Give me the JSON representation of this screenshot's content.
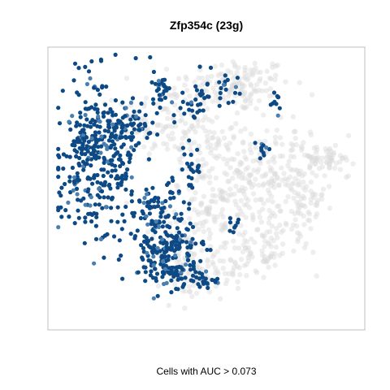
{
  "chart_data": {
    "type": "scatter",
    "title": "Zfp354c (23g)",
    "xlabel": "Cells with AUC > 0.073",
    "ylabel": "",
    "grid": false,
    "legend": "none",
    "xlim": [
      0,
      100
    ],
    "ylim": [
      0,
      100
    ],
    "colors": {
      "background_cells": "#d9d9d9",
      "high_auc_cells": "#0d4a85",
      "intermediate_cells": "#4a7fb0",
      "frame": "#bfbfbf"
    },
    "series": [
      {
        "role": "background_cells",
        "clusters": [
          {
            "cx": 60,
            "cy": 88,
            "sx": 9,
            "sy": 5,
            "n": 140
          },
          {
            "cx": 36,
            "cy": 74,
            "sx": 8,
            "sy": 7,
            "n": 110
          },
          {
            "cx": 52,
            "cy": 66,
            "sx": 6,
            "sy": 5,
            "n": 60
          },
          {
            "cx": 55,
            "cy": 44,
            "sx": 9,
            "sy": 9,
            "n": 180
          },
          {
            "cx": 73,
            "cy": 56,
            "sx": 8,
            "sy": 10,
            "n": 150
          },
          {
            "cx": 81,
            "cy": 42,
            "sx": 4,
            "sy": 8,
            "n": 70
          },
          {
            "cx": 89,
            "cy": 61,
            "sx": 5,
            "sy": 2.2,
            "n": 60
          },
          {
            "cx": 47,
            "cy": 16,
            "sx": 6,
            "sy": 4,
            "n": 60
          },
          {
            "cx": 40,
            "cy": 28,
            "sx": 5,
            "sy": 6,
            "n": 50
          },
          {
            "cx": 60,
            "cy": 24,
            "sx": 5,
            "sy": 4,
            "n": 40
          },
          {
            "cx": 70,
            "cy": 28,
            "sx": 4,
            "sy": 4,
            "n": 40
          }
        ]
      },
      {
        "role": "high_auc_cells",
        "clusters": [
          {
            "cx": 14,
            "cy": 62,
            "sx": 7,
            "sy": 15,
            "n": 330
          },
          {
            "cx": 24,
            "cy": 71,
            "sx": 5,
            "sy": 4,
            "n": 70
          },
          {
            "cx": 8,
            "cy": 66,
            "sx": 3,
            "sy": 2,
            "n": 25
          },
          {
            "cx": 37,
            "cy": 28,
            "sx": 5,
            "sy": 6,
            "n": 170
          },
          {
            "cx": 32,
            "cy": 42,
            "sx": 3,
            "sy": 4,
            "n": 50
          },
          {
            "cx": 40,
            "cy": 19,
            "sx": 4,
            "sy": 2.5,
            "n": 45
          },
          {
            "cx": 49,
            "cy": 16,
            "sx": 3,
            "sy": 2,
            "n": 25
          },
          {
            "cx": 35,
            "cy": 86,
            "sx": 1.5,
            "sy": 4,
            "n": 28
          },
          {
            "cx": 45,
            "cy": 80,
            "sx": 3,
            "sy": 3,
            "n": 25
          },
          {
            "cx": 56,
            "cy": 86,
            "sx": 4,
            "sy": 3,
            "n": 25
          },
          {
            "cx": 45,
            "cy": 56,
            "sx": 2,
            "sy": 5,
            "n": 25
          },
          {
            "cx": 38,
            "cy": 48,
            "sx": 1.5,
            "sy": 3,
            "n": 12
          },
          {
            "cx": 69,
            "cy": 66,
            "sx": 1.5,
            "sy": 2,
            "n": 10
          },
          {
            "cx": 73,
            "cy": 82,
            "sx": 1.5,
            "sy": 2.5,
            "n": 10
          },
          {
            "cx": 59,
            "cy": 37,
            "sx": 1,
            "sy": 1.5,
            "n": 8
          }
        ]
      }
    ]
  },
  "caption": "Cells with AUC > 0.073"
}
